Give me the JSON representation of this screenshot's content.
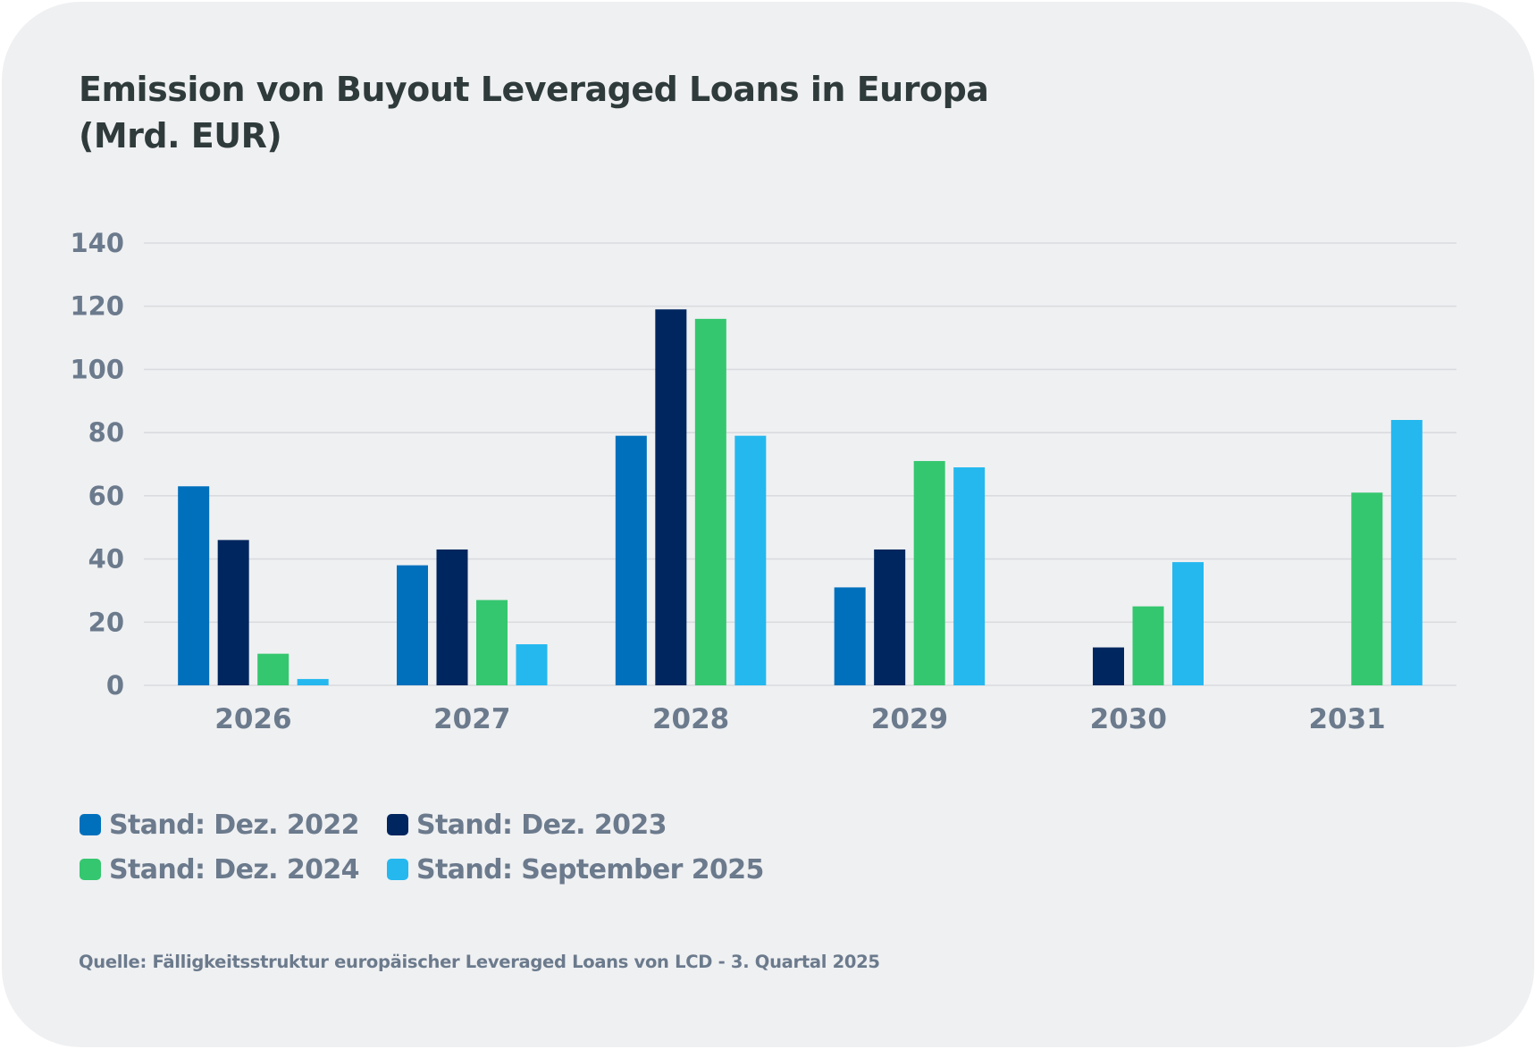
{
  "chart_data": {
    "type": "bar",
    "title": "Emission von Buyout Leveraged Loans in Europa (Mrd. EUR)",
    "title_lines": [
      "Emission von Buyout Leveraged Loans in Europa",
      "(Mrd. EUR)"
    ],
    "xlabel": "",
    "ylabel": "",
    "categories": [
      "2026",
      "2027",
      "2028",
      "2029",
      "2030",
      "2031"
    ],
    "ylim": [
      0,
      140
    ],
    "yticks": [
      0,
      20,
      40,
      60,
      80,
      100,
      120,
      140
    ],
    "grid": true,
    "legend_position": "bottom-left",
    "series": [
      {
        "name": "Stand: Dez. 2022",
        "color": "#0070bc",
        "values": [
          63,
          38,
          79,
          31,
          null,
          null
        ]
      },
      {
        "name": "Stand: Dez. 2023",
        "color": "#00265f",
        "values": [
          46,
          43,
          119,
          43,
          12,
          null
        ]
      },
      {
        "name": "Stand: Dez. 2024",
        "color": "#35c76f",
        "values": [
          10,
          27,
          116,
          71,
          25,
          61
        ]
      },
      {
        "name": "Stand: September 2025",
        "color": "#24b8ef",
        "values": [
          2,
          13,
          79,
          69,
          39,
          84
        ]
      }
    ],
    "source": "Quelle: Fälligkeitsstruktur europäischer Leveraged Loans von LCD - 3. Quartal 2025"
  }
}
